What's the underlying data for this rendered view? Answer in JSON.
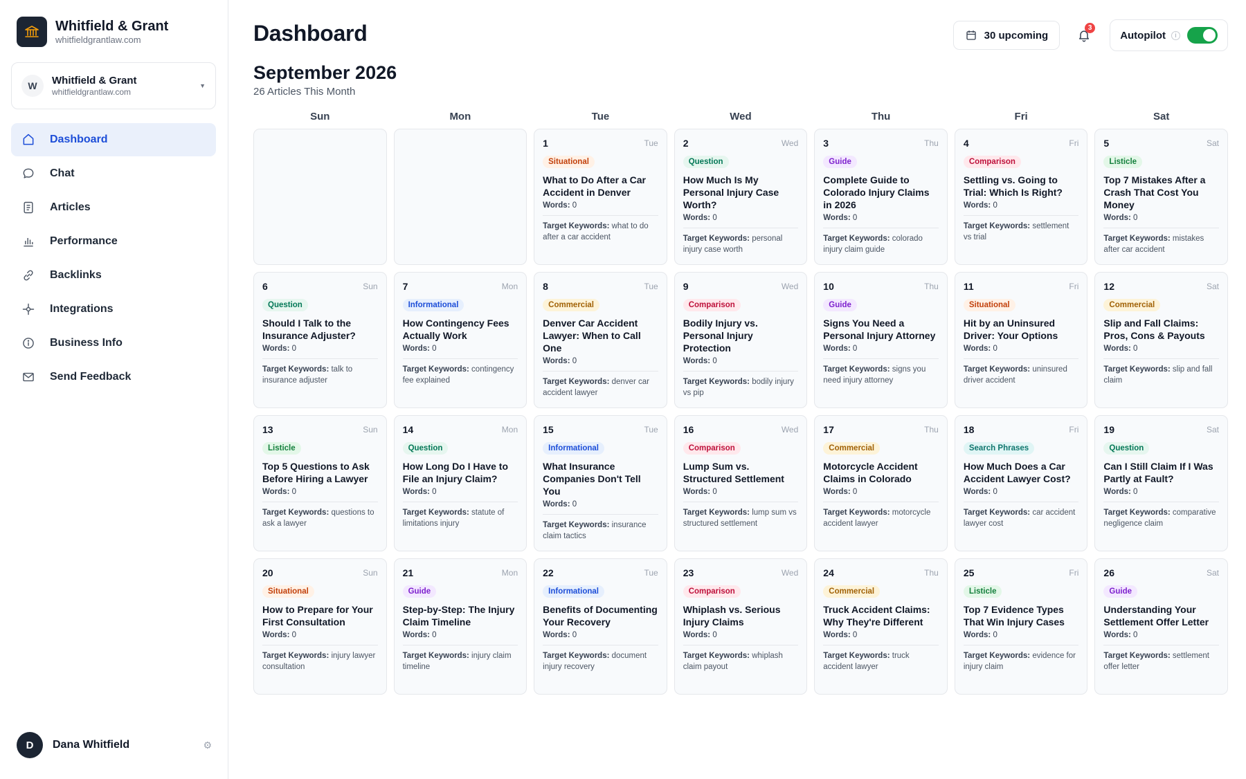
{
  "brand": {
    "name": "Whitfield & Grant",
    "domain": "whitfieldgrantlaw.com",
    "logo_icon": "building-icon",
    "logo_bg": "#1c2533",
    "logo_accent": "#f59e0b"
  },
  "account": {
    "initial": "W",
    "name": "Whitfield & Grant",
    "domain": "whitfieldgrantlaw.com"
  },
  "nav": [
    {
      "label": "Dashboard",
      "icon": "home-icon",
      "active": true
    },
    {
      "label": "Chat",
      "icon": "chat-bubble-icon",
      "active": false
    },
    {
      "label": "Articles",
      "icon": "document-icon",
      "active": false
    },
    {
      "label": "Performance",
      "icon": "bar-chart-icon",
      "active": false
    },
    {
      "label": "Backlinks",
      "icon": "link-icon",
      "active": false
    },
    {
      "label": "Integrations",
      "icon": "integration-icon",
      "active": false
    },
    {
      "label": "Business Info",
      "icon": "info-icon",
      "active": false
    },
    {
      "label": "Send Feedback",
      "icon": "mail-icon",
      "active": false
    }
  ],
  "user": {
    "initial": "D",
    "name": "Dana Whitfield"
  },
  "header": {
    "title": "Dashboard",
    "upcoming_label": "30 upcoming",
    "notification_count": "3",
    "autopilot_label": "Autopilot",
    "autopilot_on": true
  },
  "calendar": {
    "month": "September 2026",
    "subtitle": "26 Articles This Month",
    "weekdays": [
      "Sun",
      "Mon",
      "Tue",
      "Wed",
      "Thu",
      "Fri",
      "Sat"
    ],
    "words_label": "Words:",
    "keywords_label": "Target Keywords:",
    "leading_empty_cells": 2,
    "days": [
      {
        "day": "1",
        "dow": "Tue",
        "tag": "Situational",
        "title": "What to Do After a Car Accident in Denver",
        "words": "0",
        "keywords": "what to do after a car accident"
      },
      {
        "day": "2",
        "dow": "Wed",
        "tag": "Question",
        "title": "How Much Is My Personal Injury Case Worth?",
        "words": "0",
        "keywords": "personal injury case worth"
      },
      {
        "day": "3",
        "dow": "Thu",
        "tag": "Guide",
        "title": "Complete Guide to Colorado Injury Claims in 2026",
        "words": "0",
        "keywords": "colorado injury claim guide"
      },
      {
        "day": "4",
        "dow": "Fri",
        "tag": "Comparison",
        "title": "Settling vs. Going to Trial: Which Is Right?",
        "words": "0",
        "keywords": "settlement vs trial"
      },
      {
        "day": "5",
        "dow": "Sat",
        "tag": "Listicle",
        "title": "Top 7 Mistakes After a Crash That Cost You Money",
        "words": "0",
        "keywords": "mistakes after car accident"
      },
      {
        "day": "6",
        "dow": "Sun",
        "tag": "Question",
        "title": "Should I Talk to the Insurance Adjuster?",
        "words": "0",
        "keywords": "talk to insurance adjuster"
      },
      {
        "day": "7",
        "dow": "Mon",
        "tag": "Informational",
        "title": "How Contingency Fees Actually Work",
        "words": "0",
        "keywords": "contingency fee explained"
      },
      {
        "day": "8",
        "dow": "Tue",
        "tag": "Commercial",
        "title": "Denver Car Accident Lawyer: When to Call One",
        "words": "0",
        "keywords": "denver car accident lawyer"
      },
      {
        "day": "9",
        "dow": "Wed",
        "tag": "Comparison",
        "title": "Bodily Injury vs. Personal Injury Protection",
        "words": "0",
        "keywords": "bodily injury vs pip"
      },
      {
        "day": "10",
        "dow": "Thu",
        "tag": "Guide",
        "title": "Signs You Need a Personal Injury Attorney",
        "words": "0",
        "keywords": "signs you need injury attorney"
      },
      {
        "day": "11",
        "dow": "Fri",
        "tag": "Situational",
        "title": "Hit by an Uninsured Driver: Your Options",
        "words": "0",
        "keywords": "uninsured driver accident"
      },
      {
        "day": "12",
        "dow": "Sat",
        "tag": "Commercial",
        "title": "Slip and Fall Claims: Pros, Cons & Payouts",
        "words": "0",
        "keywords": "slip and fall claim"
      },
      {
        "day": "13",
        "dow": "Sun",
        "tag": "Listicle",
        "title": "Top 5 Questions to Ask Before Hiring a Lawyer",
        "words": "0",
        "keywords": "questions to ask a lawyer"
      },
      {
        "day": "14",
        "dow": "Mon",
        "tag": "Question",
        "title": "How Long Do I Have to File an Injury Claim?",
        "words": "0",
        "keywords": "statute of limitations injury"
      },
      {
        "day": "15",
        "dow": "Tue",
        "tag": "Informational",
        "title": "What Insurance Companies Don't Tell You",
        "words": "0",
        "keywords": "insurance claim tactics"
      },
      {
        "day": "16",
        "dow": "Wed",
        "tag": "Comparison",
        "title": "Lump Sum vs. Structured Settlement",
        "words": "0",
        "keywords": "lump sum vs structured settlement"
      },
      {
        "day": "17",
        "dow": "Thu",
        "tag": "Commercial",
        "title": "Motorcycle Accident Claims in Colorado",
        "words": "0",
        "keywords": "motorcycle accident lawyer"
      },
      {
        "day": "18",
        "dow": "Fri",
        "tag": "Search Phrases",
        "title": "How Much Does a Car Accident Lawyer Cost?",
        "words": "0",
        "keywords": "car accident lawyer cost"
      },
      {
        "day": "19",
        "dow": "Sat",
        "tag": "Question",
        "title": "Can I Still Claim If I Was Partly at Fault?",
        "words": "0",
        "keywords": "comparative negligence claim"
      },
      {
        "day": "20",
        "dow": "Sun",
        "tag": "Situational",
        "title": "How to Prepare for Your First Consultation",
        "words": "0",
        "keywords": "injury lawyer consultation"
      },
      {
        "day": "21",
        "dow": "Mon",
        "tag": "Guide",
        "title": "Step-by-Step: The Injury Claim Timeline",
        "words": "0",
        "keywords": "injury claim timeline"
      },
      {
        "day": "22",
        "dow": "Tue",
        "tag": "Informational",
        "title": "Benefits of Documenting Your Recovery",
        "words": "0",
        "keywords": "document injury recovery"
      },
      {
        "day": "23",
        "dow": "Wed",
        "tag": "Comparison",
        "title": "Whiplash vs. Serious Injury Claims",
        "words": "0",
        "keywords": "whiplash claim payout"
      },
      {
        "day": "24",
        "dow": "Thu",
        "tag": "Commercial",
        "title": "Truck Accident Claims: Why They're Different",
        "words": "0",
        "keywords": "truck accident lawyer"
      },
      {
        "day": "25",
        "dow": "Fri",
        "tag": "Listicle",
        "title": "Top 7 Evidence Types That Win Injury Cases",
        "words": "0",
        "keywords": "evidence for injury claim"
      },
      {
        "day": "26",
        "dow": "Sat",
        "tag": "Guide",
        "title": "Understanding Your Settlement Offer Letter",
        "words": "0",
        "keywords": "settlement offer letter"
      }
    ]
  },
  "tag_colors": {
    "Situational": {
      "bg": "#fff1e6",
      "fg": "#c2410c"
    },
    "Question": {
      "bg": "#e6f6ef",
      "fg": "#047857"
    },
    "Guide": {
      "bg": "#f3e8ff",
      "fg": "#7e22ce"
    },
    "Comparison": {
      "bg": "#ffe8ec",
      "fg": "#be123c"
    },
    "Listicle": {
      "bg": "#e3f7e8",
      "fg": "#15803d"
    },
    "Informational": {
      "bg": "#e6effd",
      "fg": "#1d4ed8"
    },
    "Commercial": {
      "bg": "#fdf3d8",
      "fg": "#a16207"
    },
    "Search Phrases": {
      "bg": "#e0f5f5",
      "fg": "#0f766e"
    }
  },
  "colors": {
    "accent": "#1d4ed8",
    "active_nav_bg": "#eaf0fb",
    "toggle_on": "#16a34a",
    "badge_red": "#ef4444"
  }
}
